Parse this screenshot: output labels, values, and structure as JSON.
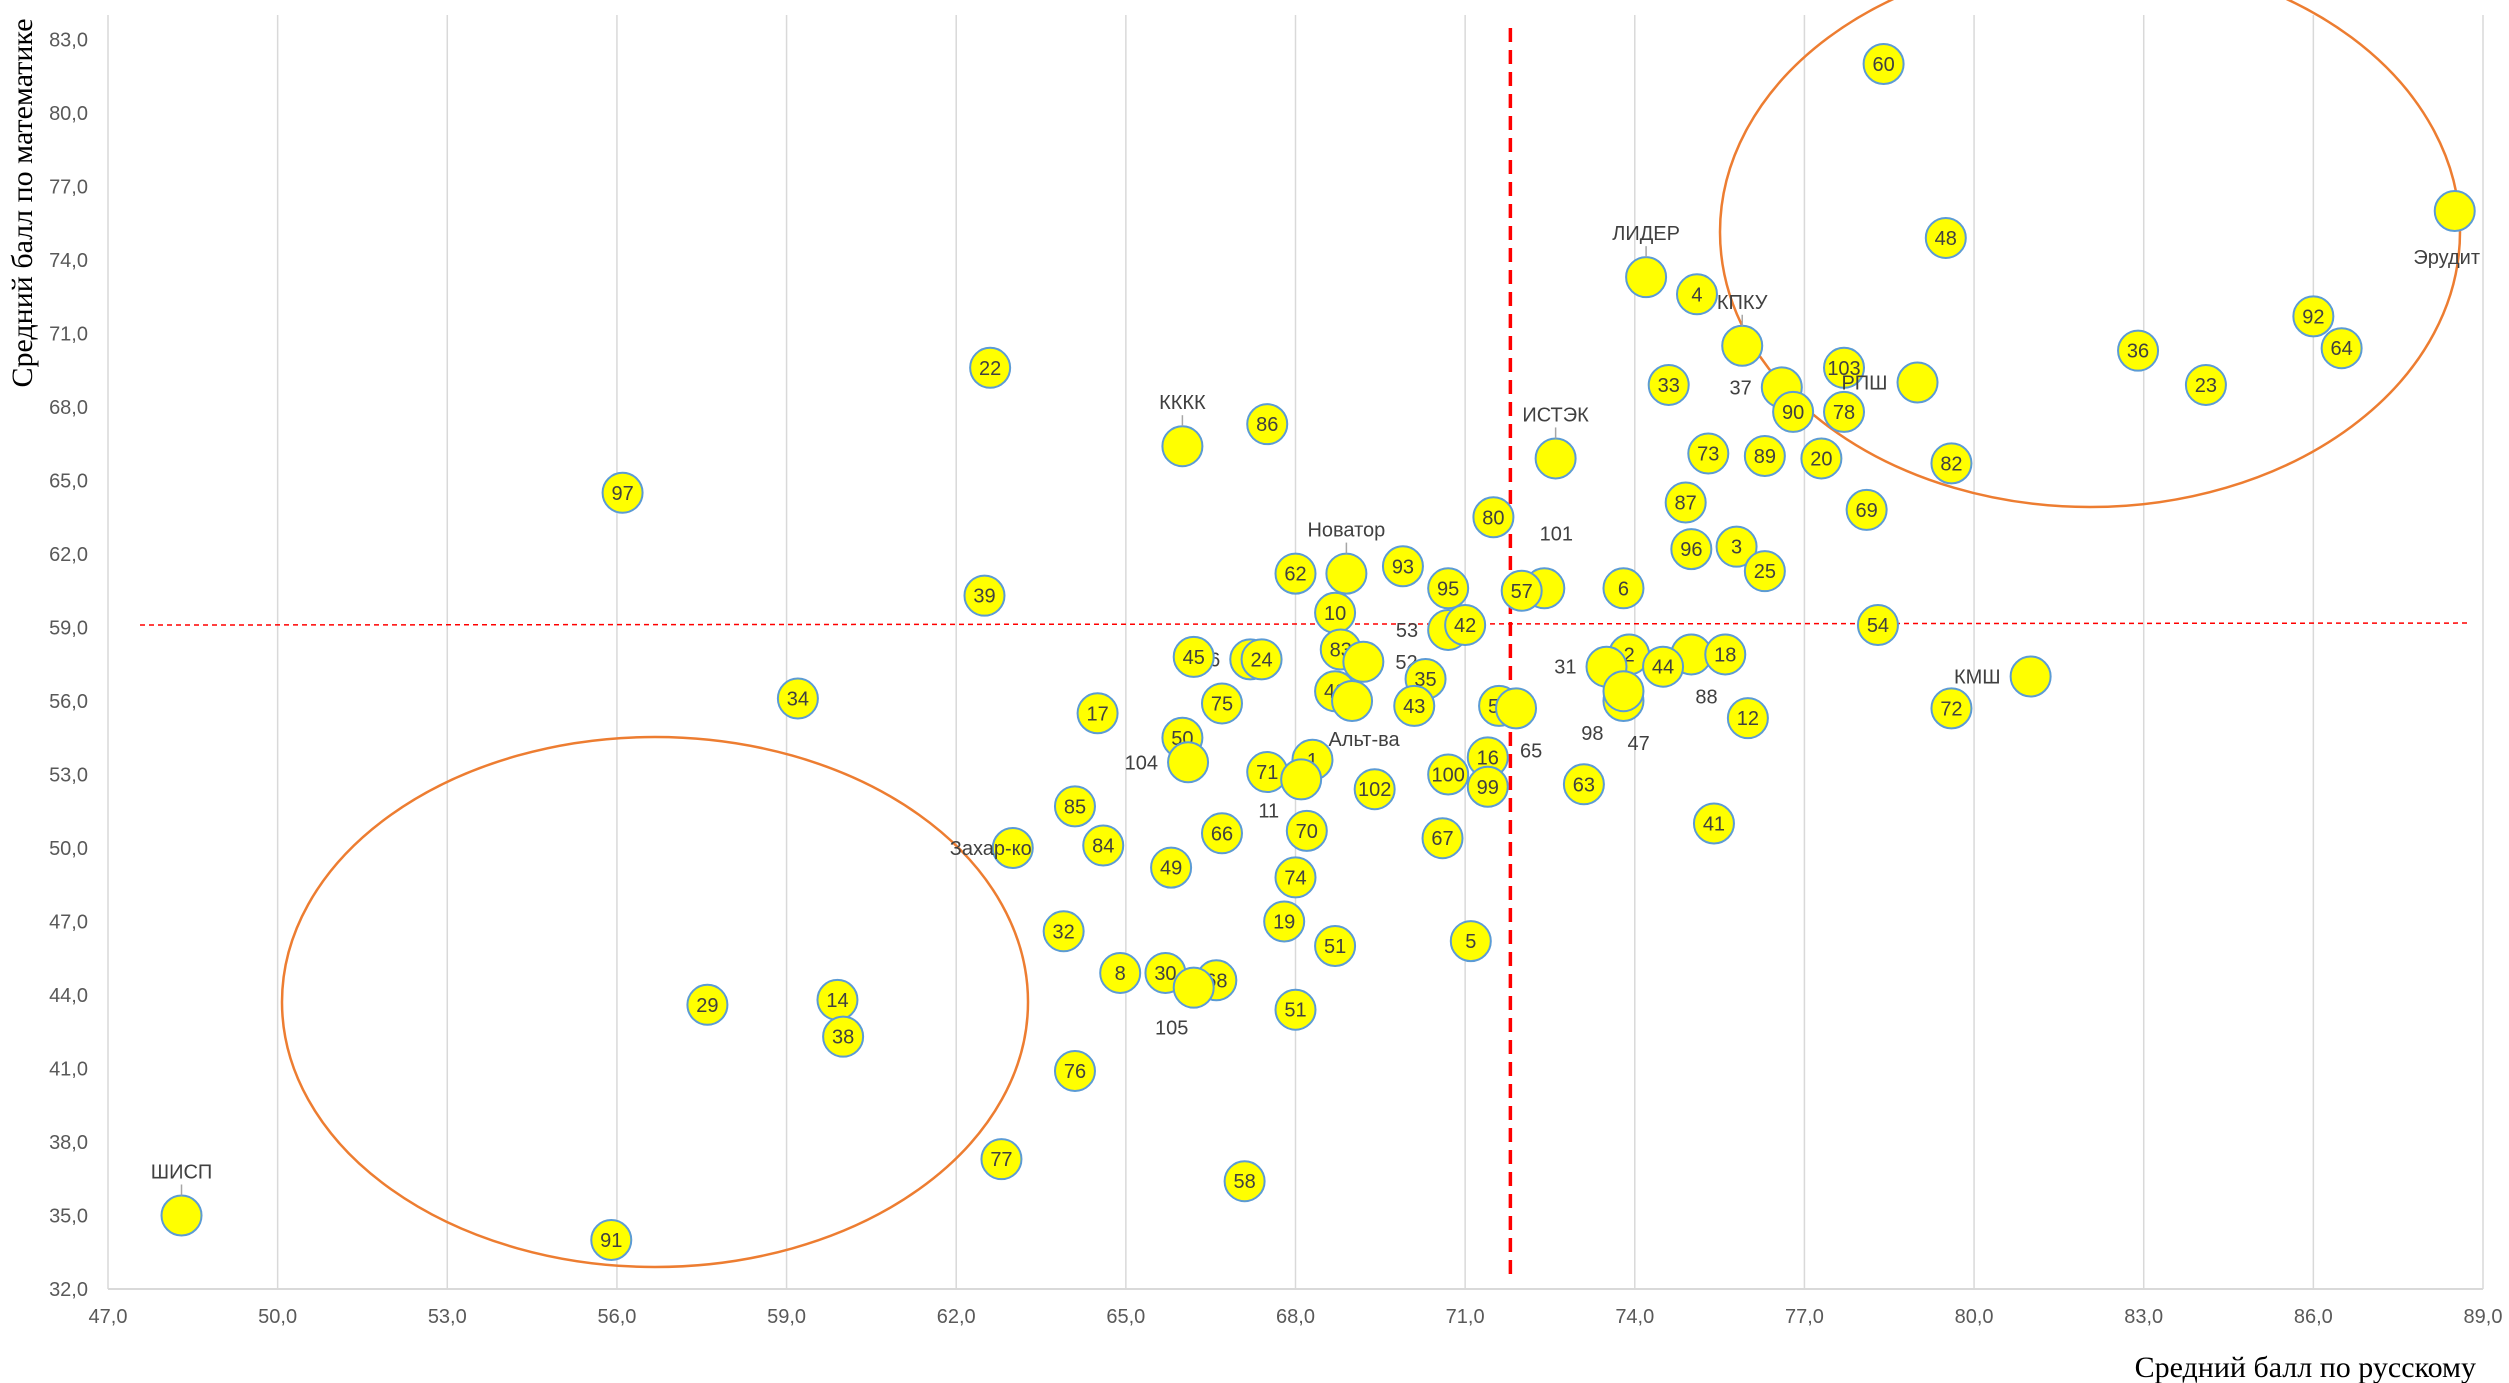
{
  "chart_data": {
    "type": "scatter",
    "xlabel": "Средний балл по русскому",
    "ylabel": "Средний балл по математике",
    "xlim": [
      47,
      89
    ],
    "ylim": [
      32,
      84
    ],
    "x_ticks": [
      "47,0",
      "50,0",
      "53,0",
      "56,0",
      "59,0",
      "62,0",
      "65,0",
      "68,0",
      "71,0",
      "74,0",
      "77,0",
      "80,0",
      "83,0",
      "86,0",
      "89,0"
    ],
    "y_ticks": [
      "32,0",
      "35,0",
      "38,0",
      "41,0",
      "44,0",
      "47,0",
      "50,0",
      "53,0",
      "56,0",
      "59,0",
      "62,0",
      "65,0",
      "68,0",
      "71,0",
      "74,0",
      "77,0",
      "80,0",
      "83,0"
    ],
    "grid": "vertical",
    "colors": {
      "point_fill": "#FFFF00",
      "point_stroke": "#5B9BD5",
      "ellipse": "#ED7D31",
      "threshold": "#FF0000",
      "grid": "#D9D9D9"
    },
    "thresholds": {
      "x": 71.8,
      "y": 59.1
    },
    "points": [
      {
        "label": "60",
        "x": 78.4,
        "y": 82.0
      },
      {
        "label": "Эрудит",
        "x": 88.5,
        "y": 76.0,
        "outside": true
      },
      {
        "label": "48",
        "x": 79.5,
        "y": 74.9
      },
      {
        "label": "ЛИДЕР",
        "x": 74.2,
        "y": 73.3,
        "outside": true
      },
      {
        "label": "4",
        "x": 75.1,
        "y": 72.6
      },
      {
        "label": "92",
        "x": 86.0,
        "y": 71.7
      },
      {
        "label": "КПКУ",
        "x": 75.9,
        "y": 70.5,
        "outside": true
      },
      {
        "label": "36",
        "x": 82.9,
        "y": 70.3
      },
      {
        "label": "64",
        "x": 86.5,
        "y": 70.4
      },
      {
        "label": "22",
        "x": 62.6,
        "y": 69.6
      },
      {
        "label": "103",
        "x": 77.7,
        "y": 69.6
      },
      {
        "label": "РПШ",
        "x": 79.0,
        "y": 69.0,
        "outside": true
      },
      {
        "label": "33",
        "x": 74.6,
        "y": 68.9
      },
      {
        "label": "37",
        "x": 76.6,
        "y": 68.8,
        "outside": true
      },
      {
        "label": "23",
        "x": 84.1,
        "y": 68.9
      },
      {
        "label": "90",
        "x": 76.8,
        "y": 67.8
      },
      {
        "label": "78",
        "x": 77.7,
        "y": 67.8
      },
      {
        "label": "86",
        "x": 67.5,
        "y": 67.3
      },
      {
        "label": "КККК",
        "x": 66.0,
        "y": 66.4,
        "outside": true
      },
      {
        "label": "73",
        "x": 75.3,
        "y": 66.1
      },
      {
        "label": "89",
        "x": 76.3,
        "y": 66.0
      },
      {
        "label": "ИСТЭК",
        "x": 72.6,
        "y": 65.9,
        "outside": true
      },
      {
        "label": "20",
        "x": 77.3,
        "y": 65.9
      },
      {
        "label": "82",
        "x": 79.6,
        "y": 65.7
      },
      {
        "label": "97",
        "x": 56.1,
        "y": 64.5
      },
      {
        "label": "87",
        "x": 74.9,
        "y": 64.1
      },
      {
        "label": "69",
        "x": 78.1,
        "y": 63.8
      },
      {
        "label": "80",
        "x": 71.5,
        "y": 63.5
      },
      {
        "label": "96",
        "x": 75.0,
        "y": 62.2
      },
      {
        "label": "3",
        "x": 75.8,
        "y": 62.3
      },
      {
        "label": "93",
        "x": 69.9,
        "y": 61.5
      },
      {
        "label": "25",
        "x": 76.3,
        "y": 61.3
      },
      {
        "label": "62",
        "x": 68.0,
        "y": 61.2
      },
      {
        "label": "Новатор",
        "x": 68.9,
        "y": 61.2,
        "outside": true
      },
      {
        "label": "101",
        "x": 72.4,
        "y": 60.6,
        "outside": true
      },
      {
        "label": "57",
        "x": 72.0,
        "y": 60.5
      },
      {
        "label": "95",
        "x": 70.7,
        "y": 60.6
      },
      {
        "label": "6",
        "x": 73.8,
        "y": 60.6
      },
      {
        "label": "39",
        "x": 62.5,
        "y": 60.3
      },
      {
        "label": "10",
        "x": 68.7,
        "y": 59.6
      },
      {
        "label": "46",
        "x": 67.2,
        "y": 57.7,
        "outside": true
      },
      {
        "label": "53",
        "x": 70.7,
        "y": 58.9,
        "outside": true
      },
      {
        "label": "42",
        "x": 71.0,
        "y": 59.1
      },
      {
        "label": "54",
        "x": 78.3,
        "y": 59.1
      },
      {
        "label": "83",
        "x": 68.8,
        "y": 58.1
      },
      {
        "label": "52",
        "x": 69.2,
        "y": 57.6,
        "outside": true
      },
      {
        "label": "2",
        "x": 73.9,
        "y": 57.9
      },
      {
        "label": "31",
        "x": 73.5,
        "y": 57.4,
        "outside": true
      },
      {
        "label": "88",
        "x": 75.0,
        "y": 57.9,
        "outside": true
      },
      {
        "label": "18",
        "x": 75.6,
        "y": 57.9
      },
      {
        "label": "45",
        "x": 66.2,
        "y": 57.8
      },
      {
        "label": "24",
        "x": 67.4,
        "y": 57.7
      },
      {
        "label": "44",
        "x": 74.5,
        "y": 57.4
      },
      {
        "label": "КМШ",
        "x": 81.0,
        "y": 57.0,
        "outside": true
      },
      {
        "label": "35",
        "x": 70.3,
        "y": 56.9
      },
      {
        "label": "34",
        "x": 59.2,
        "y": 56.1
      },
      {
        "label": "40",
        "x": 68.7,
        "y": 56.4
      },
      {
        "label": "Альт-ва",
        "x": 69.0,
        "y": 56.0,
        "outside": true
      },
      {
        "label": "47",
        "x": 73.8,
        "y": 56.0,
        "outside": true
      },
      {
        "label": "98",
        "x": 73.8,
        "y": 56.4,
        "outside": true
      },
      {
        "label": "75",
        "x": 66.7,
        "y": 55.9
      },
      {
        "label": "43",
        "x": 70.1,
        "y": 55.8
      },
      {
        "label": "55",
        "x": 71.6,
        "y": 55.8
      },
      {
        "label": "65",
        "x": 71.9,
        "y": 55.7,
        "outside": true
      },
      {
        "label": "72",
        "x": 79.6,
        "y": 55.7
      },
      {
        "label": "17",
        "x": 64.5,
        "y": 55.5
      },
      {
        "label": "12",
        "x": 76.0,
        "y": 55.3
      },
      {
        "label": "50",
        "x": 66.0,
        "y": 54.5
      },
      {
        "label": "16",
        "x": 71.4,
        "y": 53.7
      },
      {
        "label": "104",
        "x": 66.1,
        "y": 53.5,
        "outside": true
      },
      {
        "label": "1",
        "x": 68.3,
        "y": 53.6
      },
      {
        "label": "71",
        "x": 67.5,
        "y": 53.1
      },
      {
        "label": "100",
        "x": 70.7,
        "y": 53.0
      },
      {
        "label": "11",
        "x": 68.1,
        "y": 52.8,
        "outside": true
      },
      {
        "label": "99",
        "x": 71.4,
        "y": 52.5
      },
      {
        "label": "63",
        "x": 73.1,
        "y": 52.6
      },
      {
        "label": "102",
        "x": 69.4,
        "y": 52.4
      },
      {
        "label": "85",
        "x": 64.1,
        "y": 51.7
      },
      {
        "label": "41",
        "x": 75.4,
        "y": 51.0
      },
      {
        "label": "70",
        "x": 68.2,
        "y": 50.7
      },
      {
        "label": "66",
        "x": 66.7,
        "y": 50.6
      },
      {
        "label": "67",
        "x": 70.6,
        "y": 50.4
      },
      {
        "label": "84",
        "x": 64.6,
        "y": 50.1
      },
      {
        "label": "Захар-ко",
        "x": 63.0,
        "y": 50.0,
        "outside": true
      },
      {
        "label": "49",
        "x": 65.8,
        "y": 49.2
      },
      {
        "label": "74",
        "x": 68.0,
        "y": 48.8
      },
      {
        "label": "19",
        "x": 67.8,
        "y": 47.0
      },
      {
        "label": "32",
        "x": 63.9,
        "y": 46.6
      },
      {
        "label": "5",
        "x": 71.1,
        "y": 46.2
      },
      {
        "label": "51",
        "x": 68.7,
        "y": 46.0
      },
      {
        "label": "8",
        "x": 64.9,
        "y": 44.9
      },
      {
        "label": "30",
        "x": 65.7,
        "y": 44.9
      },
      {
        "label": "68",
        "x": 66.6,
        "y": 44.6
      },
      {
        "label": "105",
        "x": 66.2,
        "y": 44.3,
        "outside": true
      },
      {
        "label": "14",
        "x": 59.9,
        "y": 43.8
      },
      {
        "label": "29",
        "x": 57.6,
        "y": 43.6
      },
      {
        "label": "51",
        "x": 68.0,
        "y": 43.4
      },
      {
        "label": "38",
        "x": 60.0,
        "y": 42.3
      },
      {
        "label": "76",
        "x": 64.1,
        "y": 40.9
      },
      {
        "label": "77",
        "x": 62.8,
        "y": 37.3
      },
      {
        "label": "58",
        "x": 67.1,
        "y": 36.4
      },
      {
        "label": "ШИСП",
        "x": 48.3,
        "y": 35.0,
        "outside": true
      },
      {
        "label": "91",
        "x": 55.9,
        "y": 34.0
      }
    ]
  }
}
